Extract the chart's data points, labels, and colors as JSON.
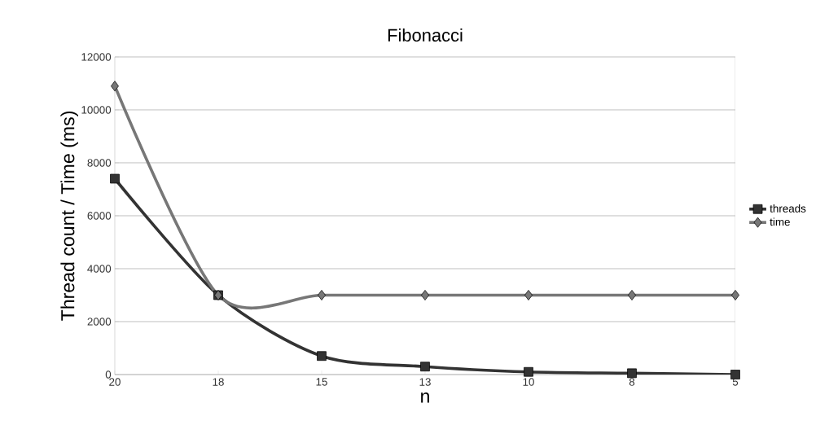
{
  "chart_data": {
    "type": "line",
    "title": "Fibonacci",
    "xlabel": "n",
    "ylabel": "Thread count  / Time (ms)",
    "categories": [
      "20",
      "18",
      "15",
      "13",
      "10",
      "8",
      "5"
    ],
    "series": [
      {
        "name": "threads",
        "color": "#333333",
        "marker": "square",
        "values": [
          7400,
          3000,
          700,
          300,
          100,
          50,
          0
        ]
      },
      {
        "name": "time",
        "color": "#777777",
        "marker": "diamond",
        "values": [
          10900,
          3000,
          3000,
          3000,
          3000,
          3000,
          3000
        ]
      }
    ],
    "ylim": [
      0,
      12000
    ],
    "yticks": [
      0,
      2000,
      4000,
      6000,
      8000,
      10000,
      12000
    ],
    "grid": "y",
    "legend": "right"
  }
}
